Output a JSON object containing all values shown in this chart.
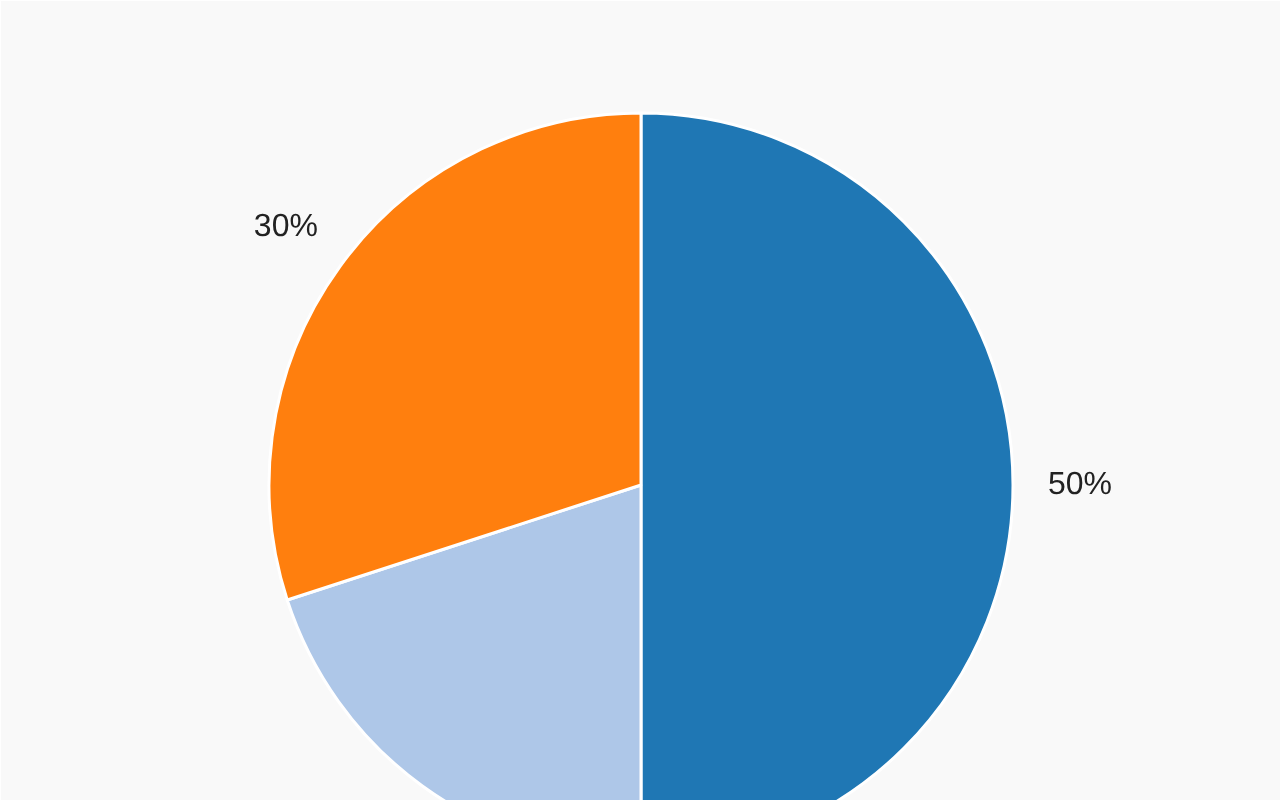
{
  "chart_data": {
    "type": "pie",
    "categories": [
      null,
      null,
      null
    ],
    "values": [
      50,
      20,
      30
    ],
    "colors": [
      "#1f77b4",
      "#aec7e8",
      "#ff7f0e"
    ],
    "value_labels": [
      "50%",
      null,
      "30%"
    ]
  }
}
